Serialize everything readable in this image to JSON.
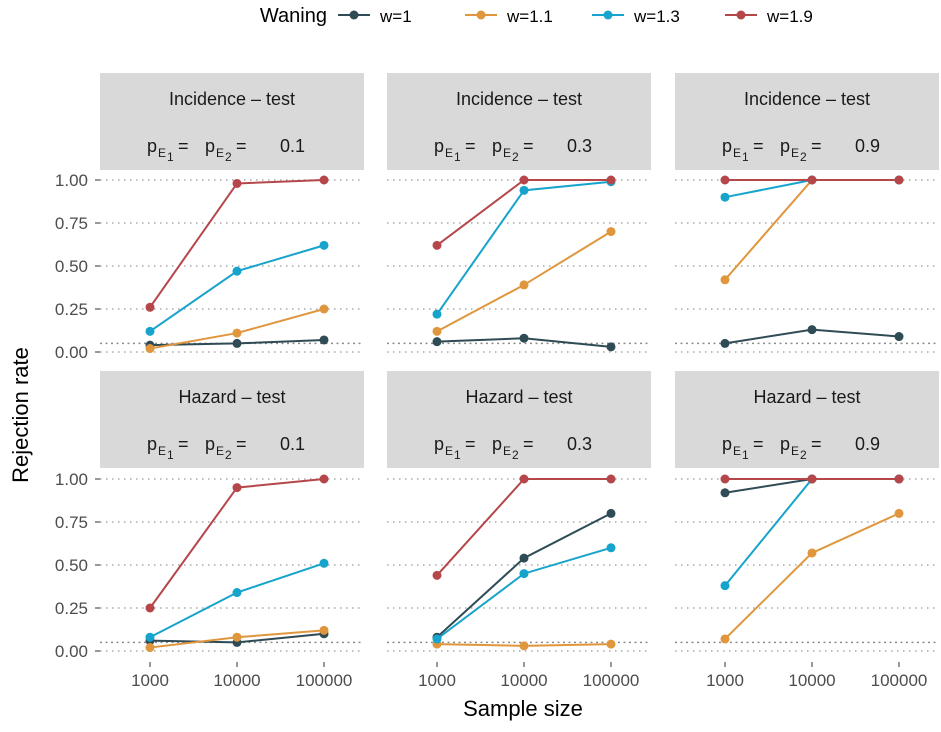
{
  "chart_data": {
    "type": "line",
    "xlabel": "Sample size",
    "ylabel": "Rejection rate",
    "x_categories": [
      "1000",
      "10000",
      "100000"
    ],
    "y_ticks": [
      "0.00",
      "0.25",
      "0.50",
      "0.75",
      "1.00"
    ],
    "ylim": [
      0,
      1
    ],
    "reference_line": 0.05,
    "grid": "horizontal dotted",
    "legend": {
      "title": "Waning",
      "position": "top",
      "entries": [
        {
          "label": "w=1",
          "color": "#2f4b55"
        },
        {
          "label": "w=1.1",
          "color": "#e0963c"
        },
        {
          "label": "w=1.3",
          "color": "#16a3cc"
        },
        {
          "label": "w=1.9",
          "color": "#b5464a"
        }
      ]
    },
    "panels": [
      {
        "row": 0,
        "col": 0,
        "title": "Incidence – test",
        "sub_a": "p",
        "sub_a_sub": "E",
        "sub_a_subsub": "1",
        "sub_eq1": "=",
        "sub_b": "p",
        "sub_b_sub": "E",
        "sub_b_subsub": "2",
        "sub_eq2": "=",
        "value": "0.1",
        "series": [
          {
            "name": "w=1",
            "values": [
              0.04,
              0.05,
              0.07
            ]
          },
          {
            "name": "w=1.1",
            "values": [
              0.02,
              0.11,
              0.25
            ]
          },
          {
            "name": "w=1.3",
            "values": [
              0.12,
              0.47,
              0.62
            ]
          },
          {
            "name": "w=1.9",
            "values": [
              0.26,
              0.98,
              1.0
            ]
          }
        ]
      },
      {
        "row": 0,
        "col": 1,
        "title": "Incidence – test",
        "sub_a": "p",
        "sub_a_sub": "E",
        "sub_a_subsub": "1",
        "sub_eq1": "=",
        "sub_b": "p",
        "sub_b_sub": "E",
        "sub_b_subsub": "2",
        "sub_eq2": "=",
        "value": "0.3",
        "series": [
          {
            "name": "w=1",
            "values": [
              0.06,
              0.08,
              0.03
            ]
          },
          {
            "name": "w=1.1",
            "values": [
              0.12,
              0.39,
              0.7
            ]
          },
          {
            "name": "w=1.3",
            "values": [
              0.22,
              0.94,
              0.99
            ]
          },
          {
            "name": "w=1.9",
            "values": [
              0.62,
              1.0,
              1.0
            ]
          }
        ]
      },
      {
        "row": 0,
        "col": 2,
        "title": "Incidence – test",
        "sub_a": "p",
        "sub_a_sub": "E",
        "sub_a_subsub": "1",
        "sub_eq1": "=",
        "sub_b": "p",
        "sub_b_sub": "E",
        "sub_b_subsub": "2",
        "sub_eq2": "=",
        "value": "0.9",
        "series": [
          {
            "name": "w=1",
            "values": [
              0.05,
              0.13,
              0.09
            ]
          },
          {
            "name": "w=1.1",
            "values": [
              0.42,
              1.0,
              1.0
            ]
          },
          {
            "name": "w=1.3",
            "values": [
              0.9,
              1.0,
              1.0
            ]
          },
          {
            "name": "w=1.9",
            "values": [
              1.0,
              1.0,
              1.0
            ]
          }
        ]
      },
      {
        "row": 1,
        "col": 0,
        "title": "Hazard – test",
        "sub_a": "p",
        "sub_a_sub": "E",
        "sub_a_subsub": "1",
        "sub_eq1": "=",
        "sub_b": "p",
        "sub_b_sub": "E",
        "sub_b_subsub": "2",
        "sub_eq2": "=",
        "value": "0.1",
        "series": [
          {
            "name": "w=1",
            "values": [
              0.06,
              0.05,
              0.1
            ]
          },
          {
            "name": "w=1.1",
            "values": [
              0.02,
              0.08,
              0.12
            ]
          },
          {
            "name": "w=1.3",
            "values": [
              0.08,
              0.34,
              0.51
            ]
          },
          {
            "name": "w=1.9",
            "values": [
              0.25,
              0.95,
              1.0
            ]
          }
        ]
      },
      {
        "row": 1,
        "col": 1,
        "title": "Hazard – test",
        "sub_a": "p",
        "sub_a_sub": "E",
        "sub_a_subsub": "1",
        "sub_eq1": "=",
        "sub_b": "p",
        "sub_b_sub": "E",
        "sub_b_subsub": "2",
        "sub_eq2": "=",
        "value": "0.3",
        "series": [
          {
            "name": "w=1",
            "values": [
              0.08,
              0.54,
              0.8
            ]
          },
          {
            "name": "w=1.1",
            "values": [
              0.04,
              0.03,
              0.04
            ]
          },
          {
            "name": "w=1.3",
            "values": [
              0.07,
              0.45,
              0.6
            ]
          },
          {
            "name": "w=1.9",
            "values": [
              0.44,
              1.0,
              1.0
            ]
          }
        ]
      },
      {
        "row": 1,
        "col": 2,
        "title": "Hazard – test",
        "sub_a": "p",
        "sub_a_sub": "E",
        "sub_a_subsub": "1",
        "sub_eq1": "=",
        "sub_b": "p",
        "sub_b_sub": "E",
        "sub_b_subsub": "2",
        "sub_eq2": "=",
        "value": "0.9",
        "series": [
          {
            "name": "w=1",
            "values": [
              0.92,
              1.0,
              1.0
            ]
          },
          {
            "name": "w=1.1",
            "values": [
              0.07,
              0.57,
              0.8
            ]
          },
          {
            "name": "w=1.3",
            "values": [
              0.38,
              1.0,
              1.0
            ]
          },
          {
            "name": "w=1.9",
            "values": [
              1.0,
              1.0,
              1.0
            ]
          }
        ]
      }
    ]
  }
}
